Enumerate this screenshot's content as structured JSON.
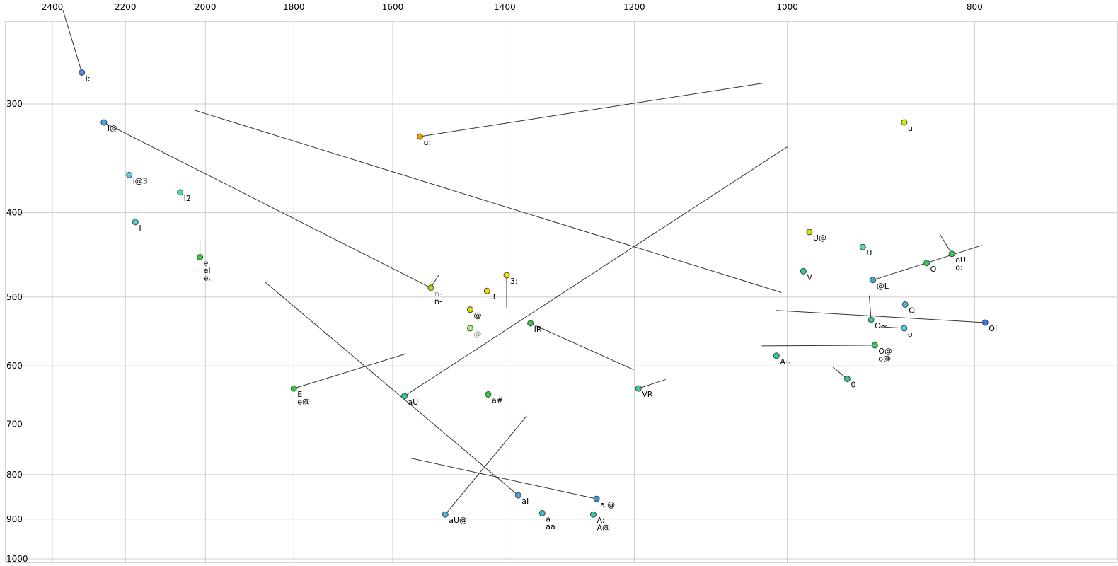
{
  "chart_data": {
    "type": "scatter",
    "title": "",
    "xlabel": "",
    "ylabel": "",
    "x_axis": {
      "scale": "log",
      "reversed": true,
      "ticks": [
        2400,
        2200,
        2000,
        1800,
        1600,
        1400,
        1200,
        1000,
        800
      ],
      "range": [
        2560,
        676
      ]
    },
    "y_axis": {
      "scale": "log",
      "reversed": true,
      "ticks": [
        300,
        400,
        500,
        600,
        700,
        800,
        900,
        1000
      ],
      "range": [
        241,
        1010
      ]
    },
    "grid": true,
    "points": [
      {
        "labels": [
          "i:"
        ],
        "f2": 2317,
        "f1": 276,
        "color": "#5588ee"
      },
      {
        "labels": [
          "I@"
        ],
        "f2": 2257,
        "f1": 315,
        "color": "#44aaee"
      },
      {
        "labels": [
          "i@3"
        ],
        "f2": 2190,
        "f1": 362,
        "color": "#55ccee"
      },
      {
        "labels": [
          "I2"
        ],
        "f2": 2061,
        "f1": 379,
        "color": "#44dd99"
      },
      {
        "labels": [
          "I"
        ],
        "f2": 2174,
        "f1": 410,
        "color": "#55cccc"
      },
      {
        "labels": [
          "e",
          "eI",
          "e:"
        ],
        "f2": 2013,
        "f1": 450,
        "color": "#33cc33"
      },
      {
        "labels": [
          "u:"
        ],
        "f2": 1549,
        "f1": 327,
        "color": "#ee9900"
      },
      {
        "labels": [
          {
            "text": "n-",
            "gray": true
          },
          "n-"
        ],
        "f2": 1529,
        "f1": 488,
        "color": "#aadd00"
      },
      {
        "labels": [
          "3"
        ],
        "f2": 1430,
        "f1": 492,
        "color": "#eedd00"
      },
      {
        "labels": [
          "3:"
        ],
        "f2": 1397,
        "f1": 472,
        "color": "#eedd00"
      },
      {
        "labels": [
          "@-"
        ],
        "f2": 1459,
        "f1": 517,
        "color": "#dddd00"
      },
      {
        "labels": [
          {
            "text": "@",
            "gray": true
          }
        ],
        "f2": 1459,
        "f1": 543,
        "color": "#aaee88"
      },
      {
        "labels": [
          "IR"
        ],
        "f2": 1358,
        "f1": 536,
        "color": "#33cc44"
      },
      {
        "labels": [
          "E",
          "e@"
        ],
        "f2": 1800,
        "f1": 637,
        "color": "#33cc33"
      },
      {
        "labels": [
          "aU"
        ],
        "f2": 1578,
        "f1": 650,
        "color": "#33cc99"
      },
      {
        "labels": [
          "a#"
        ],
        "f2": 1428,
        "f1": 647,
        "color": "#33cc44"
      },
      {
        "labels": [
          "VR"
        ],
        "f2": 1194,
        "f1": 637,
        "color": "#33cc99"
      },
      {
        "labels": [
          "aU@"
        ],
        "f2": 1503,
        "f1": 889,
        "color": "#44bbdd"
      },
      {
        "labels": [
          "aI"
        ],
        "f2": 1378,
        "f1": 845,
        "color": "#44aadd"
      },
      {
        "labels": [
          "a",
          "aa"
        ],
        "f2": 1339,
        "f1": 886,
        "color": "#44bbdd"
      },
      {
        "labels": [
          "aI@"
        ],
        "f2": 1255,
        "f1": 853,
        "color": "#3399dd"
      },
      {
        "labels": [
          "A:",
          "A@"
        ],
        "f2": 1260,
        "f1": 889,
        "color": "#33ccaa"
      },
      {
        "labels": [
          "U@"
        ],
        "f2": 974,
        "f1": 421,
        "color": "#dddd00"
      },
      {
        "labels": [
          "U"
        ],
        "f2": 914,
        "f1": 438,
        "color": "#55ddaa"
      },
      {
        "labels": [
          "u"
        ],
        "f2": 870,
        "f1": 315,
        "color": "#ccee00"
      },
      {
        "labels": [
          "V"
        ],
        "f2": 981,
        "f1": 467,
        "color": "#33cc99"
      },
      {
        "labels": [
          "@L"
        ],
        "f2": 903,
        "f1": 478,
        "color": "#44aacc"
      },
      {
        "labels": [
          "O"
        ],
        "f2": 847,
        "f1": 457,
        "color": "#33cc55"
      },
      {
        "labels": [
          "oU",
          "o:"
        ],
        "f2": 822,
        "f1": 446,
        "color": "#33cc55"
      },
      {
        "labels": [
          "O:"
        ],
        "f2": 869,
        "f1": 510,
        "color": "#44bbdd"
      },
      {
        "labels": [
          "O~"
        ],
        "f2": 905,
        "f1": 531,
        "color": "#33cc99"
      },
      {
        "labels": [
          "o"
        ],
        "f2": 870,
        "f1": 543,
        "color": "#55ccdd"
      },
      {
        "labels": [
          "OI"
        ],
        "f2": 790,
        "f1": 535,
        "color": "#3377ee"
      },
      {
        "labels": [
          "O@",
          "o@"
        ],
        "f2": 901,
        "f1": 568,
        "color": "#33cc55"
      },
      {
        "labels": [
          "A~"
        ],
        "f2": 1013,
        "f1": 584,
        "color": "#33cc99"
      },
      {
        "labels": [
          "0"
        ],
        "f2": 931,
        "f1": 621,
        "color": "#33cc99"
      }
    ],
    "segments": [
      [
        2370,
        234,
        2317,
        276
      ],
      [
        2257,
        315,
        1529,
        488
      ],
      [
        2026,
        305,
        1007,
        494
      ],
      [
        1549,
        327,
        1030,
        284
      ],
      [
        2013,
        450,
        2013,
        430
      ],
      [
        1529,
        488,
        1515,
        472
      ],
      [
        1397,
        472,
        1397,
        514
      ],
      [
        1358,
        536,
        1201,
        606
      ],
      [
        1800,
        637,
        1575,
        581
      ],
      [
        1578,
        650,
        1000,
        336
      ],
      [
        1378,
        845,
        1864,
        480
      ],
      [
        1503,
        889,
        1364,
        685
      ],
      [
        1255,
        853,
        1566,
        766
      ],
      [
        1194,
        637,
        1156,
        622
      ],
      [
        822,
        446,
        834,
        423
      ],
      [
        905,
        531,
        907,
        498
      ],
      [
        870,
        543,
        895,
        541
      ],
      [
        931,
        621,
        947,
        602
      ],
      [
        901,
        568,
        1031,
        569
      ],
      [
        790,
        535,
        1013,
        518
      ],
      [
        903,
        478,
        793,
        436
      ]
    ]
  },
  "style": {
    "background": "#ffffff",
    "grid_color": "#cccccc",
    "border_color": "#aaaaaa",
    "segment_color": "#333333",
    "dot_stroke": "#444444",
    "label_color": "#000000",
    "gray_label_color": "#999999",
    "tick_label_color": "#000000"
  }
}
